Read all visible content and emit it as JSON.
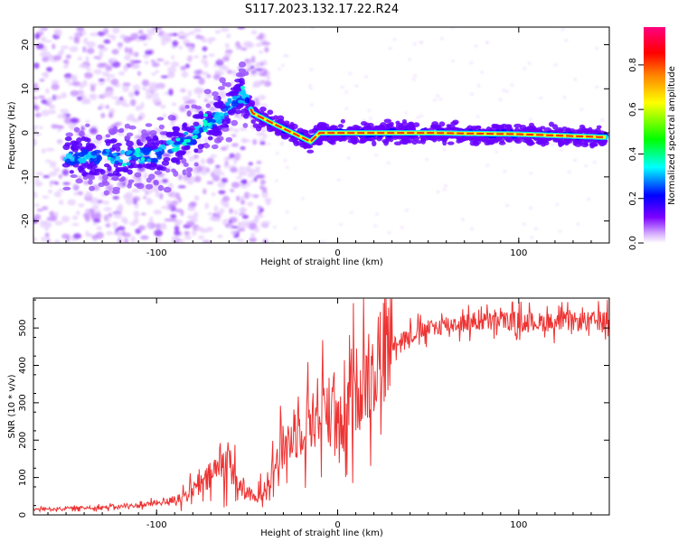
{
  "title": "S117.2023.132.17.22.R24",
  "chart_data": [
    {
      "type": "heatmap",
      "xlabel": "Height of straight line (km)",
      "ylabel": "Frequency (Hz)",
      "xlim": [
        -168,
        150
      ],
      "ylim": [
        -25,
        24
      ],
      "x_ticks": [
        -100,
        0,
        100
      ],
      "y_ticks": [
        -20,
        -10,
        0,
        10,
        20
      ],
      "colorbar": {
        "label": "Normalized spectral amplitude",
        "range": [
          0.0,
          0.97
        ],
        "ticks": [
          0.0,
          0.2,
          0.4,
          0.6,
          0.8
        ],
        "colors": [
          "#ffffff",
          "#d9b3ff",
          "#7b00ff",
          "#0000ff",
          "#00ffff",
          "#00ff00",
          "#ffff00",
          "#ff8000",
          "#ff0000",
          "#ff0080"
        ]
      },
      "ridge": {
        "description_points": [
          {
            "x": -130,
            "y": -5.5
          },
          {
            "x": -100,
            "y": -5
          },
          {
            "x": -85,
            "y": -2
          },
          {
            "x": -70,
            "y": 2
          },
          {
            "x": -60,
            "y": 6
          },
          {
            "x": -52,
            "y": 9
          },
          {
            "x": -47,
            "y": 4.5
          },
          {
            "x": -35,
            "y": 2
          },
          {
            "x": -25,
            "y": 0
          },
          {
            "x": -15,
            "y": -2
          },
          {
            "x": -10,
            "y": 0
          },
          {
            "x": 0,
            "y": 0
          },
          {
            "x": 50,
            "y": 0
          },
          {
            "x": 100,
            "y": -0.3
          },
          {
            "x": 148,
            "y": -1
          }
        ]
      }
    },
    {
      "type": "line",
      "xlabel": "Height of straight line (km)",
      "ylabel": "SNR (10 * v/v)",
      "xlim": [
        -168,
        150
      ],
      "ylim": [
        0,
        580
      ],
      "x_ticks": [
        -100,
        0,
        100
      ],
      "y_ticks": [
        0,
        100,
        200,
        300,
        400,
        500
      ],
      "series": [
        {
          "color": "#ee3333",
          "trend": [
            {
              "x": -168,
              "y": 15
            },
            {
              "x": -130,
              "y": 20
            },
            {
              "x": -110,
              "y": 25
            },
            {
              "x": -95,
              "y": 35
            },
            {
              "x": -85,
              "y": 50
            },
            {
              "x": -75,
              "y": 80
            },
            {
              "x": -65,
              "y": 130
            },
            {
              "x": -60,
              "y": 150
            },
            {
              "x": -55,
              "y": 80
            },
            {
              "x": -45,
              "y": 40
            },
            {
              "x": -38,
              "y": 100
            },
            {
              "x": -30,
              "y": 180
            },
            {
              "x": -20,
              "y": 240
            },
            {
              "x": -10,
              "y": 280
            },
            {
              "x": -2,
              "y": 300
            },
            {
              "x": 1,
              "y": 180
            },
            {
              "x": 8,
              "y": 320
            },
            {
              "x": 20,
              "y": 400
            },
            {
              "x": 30,
              "y": 460
            },
            {
              "x": 45,
              "y": 490
            },
            {
              "x": 60,
              "y": 510
            },
            {
              "x": 90,
              "y": 520
            },
            {
              "x": 120,
              "y": 515
            },
            {
              "x": 150,
              "y": 520
            }
          ]
        }
      ]
    }
  ]
}
